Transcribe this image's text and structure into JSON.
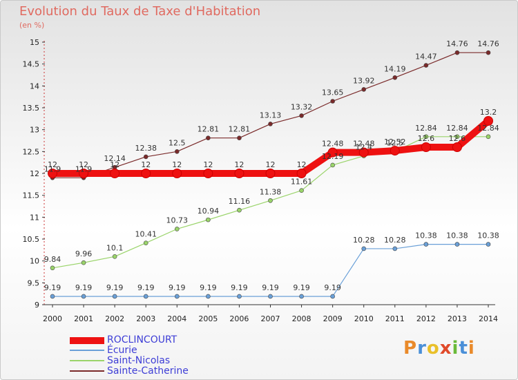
{
  "chart_data": {
    "type": "line",
    "title": "Evolution du Taux de Taxe d'Habitation",
    "subtitle": "(en %)",
    "xlabel": "",
    "ylabel": "",
    "ylim": [
      9,
      15
    ],
    "yticks": [
      "9",
      "9.5",
      "10",
      "10.5",
      "11",
      "11.5",
      "12",
      "12.5",
      "13",
      "13.5",
      "14",
      "14.5",
      "15"
    ],
    "categories": [
      "2000",
      "2001",
      "2002",
      "2003",
      "2004",
      "2005",
      "2006",
      "2007",
      "2008",
      "2009",
      "2010",
      "2011",
      "2012",
      "2013",
      "2014"
    ],
    "series": [
      {
        "name": "ROCLINCOURT",
        "color": "#ee1111",
        "labels_below": false,
        "values": [
          12,
          12,
          12,
          12,
          12,
          12,
          12,
          12,
          12,
          12.48,
          12.48,
          12.52,
          12.6,
          12.6,
          13.2
        ],
        "labels": [
          "12",
          "12",
          "12",
          "12",
          "12",
          "12",
          "12",
          "12",
          "12",
          "12.48",
          "12.48",
          "12.52",
          "12.6",
          "12.6",
          "13.2"
        ]
      },
      {
        "name": "Écurie",
        "color": "#6aa0d8",
        "labels_below": false,
        "values": [
          9.19,
          9.19,
          9.19,
          9.19,
          9.19,
          9.19,
          9.19,
          9.19,
          9.19,
          9.19,
          10.28,
          10.28,
          10.38,
          10.38,
          10.38
        ],
        "labels": [
          "9.19",
          "9.19",
          "9.19",
          "9.19",
          "9.19",
          "9.19",
          "9.19",
          "9.19",
          "9.19",
          "9.19",
          "10.28",
          "10.28",
          "10.38",
          "10.38",
          "10.38"
        ]
      },
      {
        "name": "Saint-Nicolas",
        "color": "#9ad46a",
        "labels_below": false,
        "values": [
          9.84,
          9.96,
          10.1,
          10.41,
          10.73,
          10.94,
          11.16,
          11.38,
          11.61,
          12.19,
          12.4,
          12.5,
          12.84,
          12.84,
          12.84
        ],
        "labels": [
          "9.84",
          "9.96",
          "10.1",
          "10.41",
          "10.73",
          "10.94",
          "11.16",
          "11.38",
          "11.61",
          "12.19",
          "12.4",
          "12.5",
          "12.84",
          "12.84",
          "12.84"
        ]
      },
      {
        "name": "Sainte-Catherine",
        "color": "#7a2a2a",
        "labels_below": false,
        "values": [
          11.9,
          11.9,
          12.14,
          12.38,
          12.5,
          12.81,
          12.81,
          13.13,
          13.32,
          13.65,
          13.92,
          14.19,
          14.47,
          14.76,
          14.76
        ],
        "labels": [
          "11.9",
          "11.9",
          "12.14",
          "12.38",
          "12.5",
          "12.81",
          "12.81",
          "13.13",
          "13.32",
          "13.65",
          "13.92",
          "14.19",
          "14.47",
          "14.76",
          "14.76"
        ]
      }
    ],
    "legend_position": "bottom-left"
  },
  "brand": {
    "letters": [
      "P",
      "r",
      "o",
      "x",
      "i",
      "t",
      "i"
    ],
    "colors": [
      "#e98a2a",
      "#4a8fd8",
      "#e9c02a",
      "#e04a2a",
      "#6aba3a",
      "#4a8fd8",
      "#e98a2a"
    ]
  }
}
